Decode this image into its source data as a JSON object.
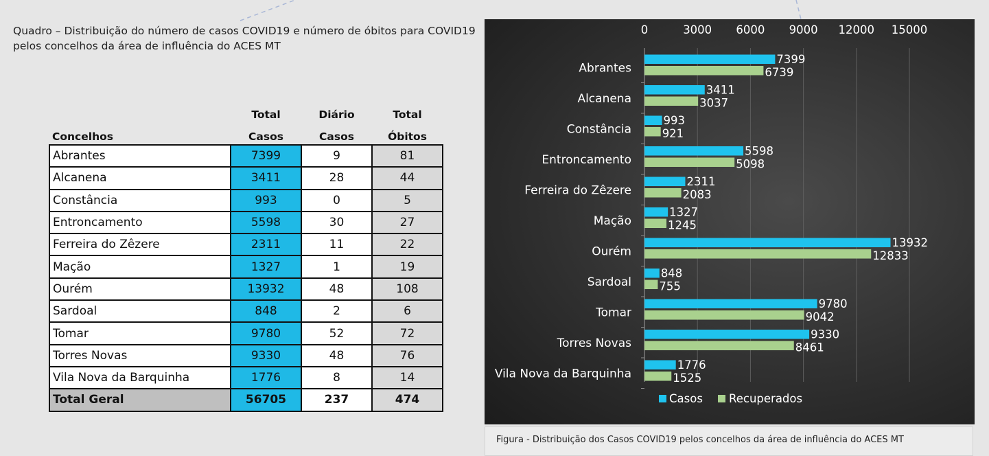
{
  "caption": {
    "line1": "Quadro – Distribuição do número de casos COVID19 e número de óbitos para COVID19",
    "line2": "pelos concelhos da área de influência do ACES MT"
  },
  "table": {
    "headers": {
      "concelhos": "Concelhos",
      "casos_top": "Total",
      "casos_bottom": "Casos",
      "diario_top": "Diário",
      "diario_bottom": "Casos",
      "obitos_top": "Total",
      "obitos_bottom": "Óbitos"
    },
    "rows": [
      {
        "name": "Abrantes",
        "casos": "7399",
        "diario": "9",
        "obitos": "81"
      },
      {
        "name": "Alcanena",
        "casos": "3411",
        "diario": "28",
        "obitos": "44"
      },
      {
        "name": "Constância",
        "casos": "993",
        "diario": "0",
        "obitos": "5"
      },
      {
        "name": "Entroncamento",
        "casos": "5598",
        "diario": "30",
        "obitos": "27"
      },
      {
        "name": "Ferreira do Zêzere",
        "casos": "2311",
        "diario": "11",
        "obitos": "22"
      },
      {
        "name": "Mação",
        "casos": "1327",
        "diario": "1",
        "obitos": "19"
      },
      {
        "name": "Ourém",
        "casos": "13932",
        "diario": "48",
        "obitos": "108"
      },
      {
        "name": "Sardoal",
        "casos": "848",
        "diario": "2",
        "obitos": "6"
      },
      {
        "name": "Tomar",
        "casos": "9780",
        "diario": "52",
        "obitos": "72"
      },
      {
        "name": "Torres Novas",
        "casos": "9330",
        "diario": "48",
        "obitos": "76"
      },
      {
        "name": "Vila Nova da Barquinha",
        "casos": "1776",
        "diario": "8",
        "obitos": "14"
      }
    ],
    "total": {
      "name": "Total Geral",
      "casos": "56705",
      "diario": "237",
      "obitos": "474"
    }
  },
  "chart_data": {
    "type": "bar",
    "orientation": "horizontal",
    "categories": [
      "Abrantes",
      "Alcanena",
      "Constância",
      "Entroncamento",
      "Ferreira do Zêzere",
      "Mação",
      "Ourém",
      "Sardoal",
      "Tomar",
      "Torres Novas",
      "Vila Nova da Barquinha"
    ],
    "series": [
      {
        "name": "Casos",
        "color": "#1fc3ee",
        "values": [
          7399,
          3411,
          993,
          5598,
          2311,
          1327,
          13932,
          848,
          9780,
          9330,
          1776
        ]
      },
      {
        "name": "Recuperados",
        "color": "#a9d18e",
        "values": [
          6739,
          3037,
          921,
          5098,
          2083,
          1245,
          12833,
          755,
          9042,
          8461,
          1525
        ]
      }
    ],
    "xlim": [
      0,
      15000
    ],
    "xticks": [
      "0",
      "3000",
      "6000",
      "9000",
      "12000",
      "15000"
    ],
    "x_axis_position": "top",
    "grid": true,
    "legend_position": "bottom",
    "data_labels": true
  },
  "figure_caption": "Figura -  Distribuição dos Casos COVID19 pelos concelhos da área de influência do ACES MT"
}
